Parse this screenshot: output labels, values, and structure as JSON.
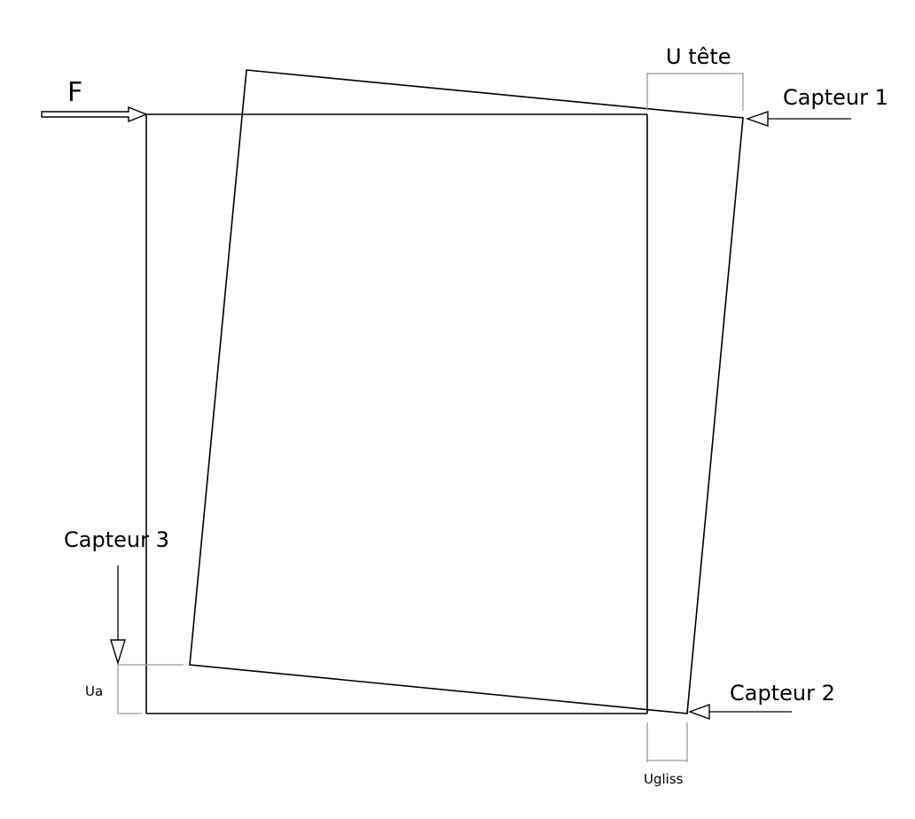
{
  "labels": {
    "force": "F",
    "u_tete": "U tête",
    "capteur_1": "Capteur 1",
    "capteur_2": "Capteur 2",
    "capteur_3": "Capteur 3",
    "u_a": "Ua",
    "u_gliss": "Ugliss"
  },
  "colors": {
    "line": "#000000",
    "dimension": "#9a9a9a",
    "background": "#ffffff"
  }
}
